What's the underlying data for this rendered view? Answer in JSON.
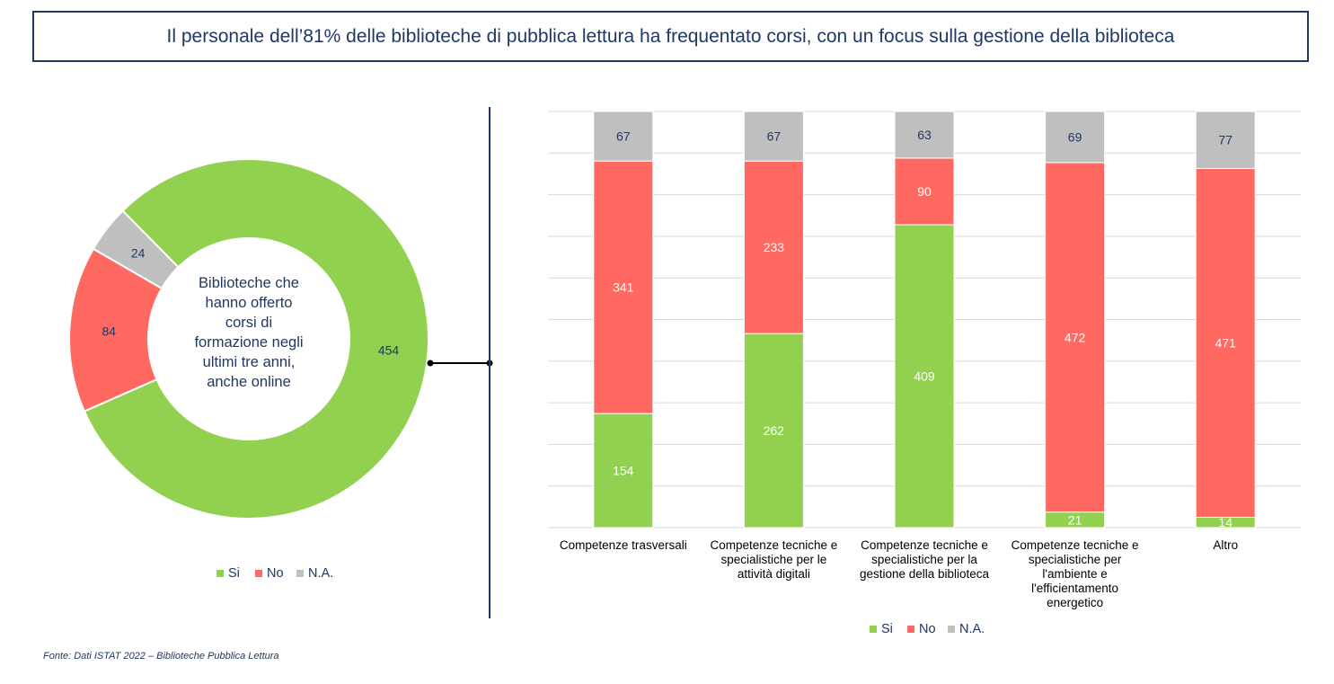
{
  "header": {
    "title": "Il personale dell’81% delle biblioteche di pubblica lettura ha frequentato corsi, con un focus sulla gestione della biblioteca"
  },
  "footer": {
    "source": "Fonte: Dati ISTAT 2022 – Biblioteche Pubblica Lettura"
  },
  "colors": {
    "si": "#92d050",
    "no": "#ff6961",
    "na": "#bfbfbf",
    "dark": "#1f3864"
  },
  "chart_data": [
    {
      "type": "pie",
      "variant": "donut",
      "center_label_lines": [
        "Biblioteche che",
        "hanno offerto",
        "corsi di",
        "formazione negli",
        "ultimi tre anni,",
        "anche online"
      ],
      "slices": [
        {
          "name": "Si",
          "value": 454
        },
        {
          "name": "No",
          "value": 84
        },
        {
          "name": "N.A.",
          "value": 24
        }
      ],
      "legend": [
        "Si",
        "No",
        "N.A."
      ],
      "legend_position": "bottom"
    },
    {
      "type": "bar",
      "stacked": true,
      "categories": [
        [
          "Competenze trasversali"
        ],
        [
          "Competenze tecniche e",
          "specialistiche per le",
          "attività digitali"
        ],
        [
          "Competenze tecniche e",
          "specialistiche per la",
          "gestione della biblioteca"
        ],
        [
          "Competenze tecniche e",
          "specialistiche per",
          "l'ambiente e",
          "l'efficientamento",
          "energetico"
        ],
        [
          "Altro"
        ]
      ],
      "series": [
        {
          "name": "Si",
          "values": [
            154,
            262,
            409,
            21,
            14
          ]
        },
        {
          "name": "No",
          "values": [
            341,
            233,
            90,
            472,
            471
          ]
        },
        {
          "name": "N.A.",
          "values": [
            67,
            67,
            63,
            69,
            77
          ]
        }
      ],
      "ylim": [
        0,
        562
      ],
      "grid": true,
      "legend": [
        "Si",
        "No",
        "N.A."
      ],
      "legend_position": "bottom"
    }
  ]
}
